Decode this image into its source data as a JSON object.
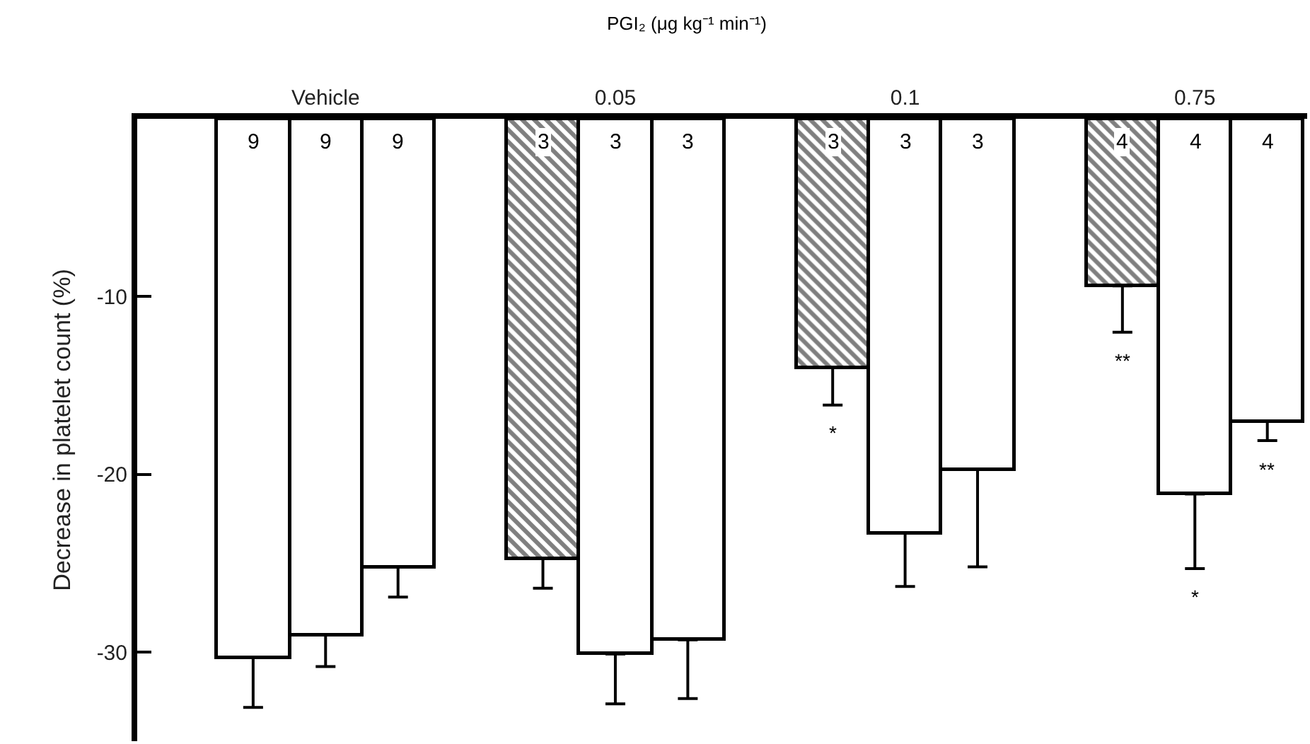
{
  "chart_data": {
    "type": "bar",
    "categories": [
      null,
      null,
      "Vehicle",
      null,
      null,
      null,
      "0.05",
      null,
      null,
      null,
      "0.1",
      null,
      null,
      null,
      "0.75",
      null
    ],
    "ylabel": "Decrease in platelet count (%)",
    "series": [
      {
        "color": "#000000",
        "values": [
          null,
          null,
          null,
          null,
          null,
          -24.7,
          null,
          null,
          null,
          -14.0,
          null,
          null,
          null,
          -9.4,
          null,
          null
        ],
        "errors": [
          null,
          null,
          null,
          null,
          null,
          [
            -26.4,
            -24.7
          ],
          null,
          null,
          null,
          [
            -16.1,
            -14.0
          ],
          null,
          null,
          null,
          [
            -12.0,
            -9.4
          ],
          null,
          null
        ]
      },
      {
        "color": "#ffffff",
        "values": [
          null,
          -30.3,
          -29.0,
          -25.2,
          null,
          null,
          -30.1,
          -29.3,
          null,
          null,
          -23.3,
          -19.7,
          null,
          null,
          -21.1,
          -17.0
        ],
        "errors": [
          null,
          [
            -33.1,
            -30.3
          ],
          [
            -30.8,
            -29.0
          ],
          [
            -26.9,
            -25.2
          ],
          null,
          null,
          [
            -32.9,
            -30.1
          ],
          [
            -32.6,
            -29.3
          ],
          null,
          null,
          [
            -26.3,
            -23.3
          ],
          [
            -25.2,
            -19.7
          ],
          null,
          null,
          [
            -25.3,
            -21.1
          ],
          [
            -18.1,
            -17.0
          ]
        ]
      }
    ],
    "annotations": [
      "PGI₂ (μg kg⁻¹ min⁻¹)",
      "9",
      "9",
      "9",
      "3",
      "3",
      "3",
      "3",
      "3",
      "3",
      "4",
      "4",
      "4",
      "*",
      "**",
      "*",
      "**"
    ],
    "ylim": [
      -35,
      0
    ],
    "yticks": [
      -10,
      -20,
      -30
    ]
  }
}
